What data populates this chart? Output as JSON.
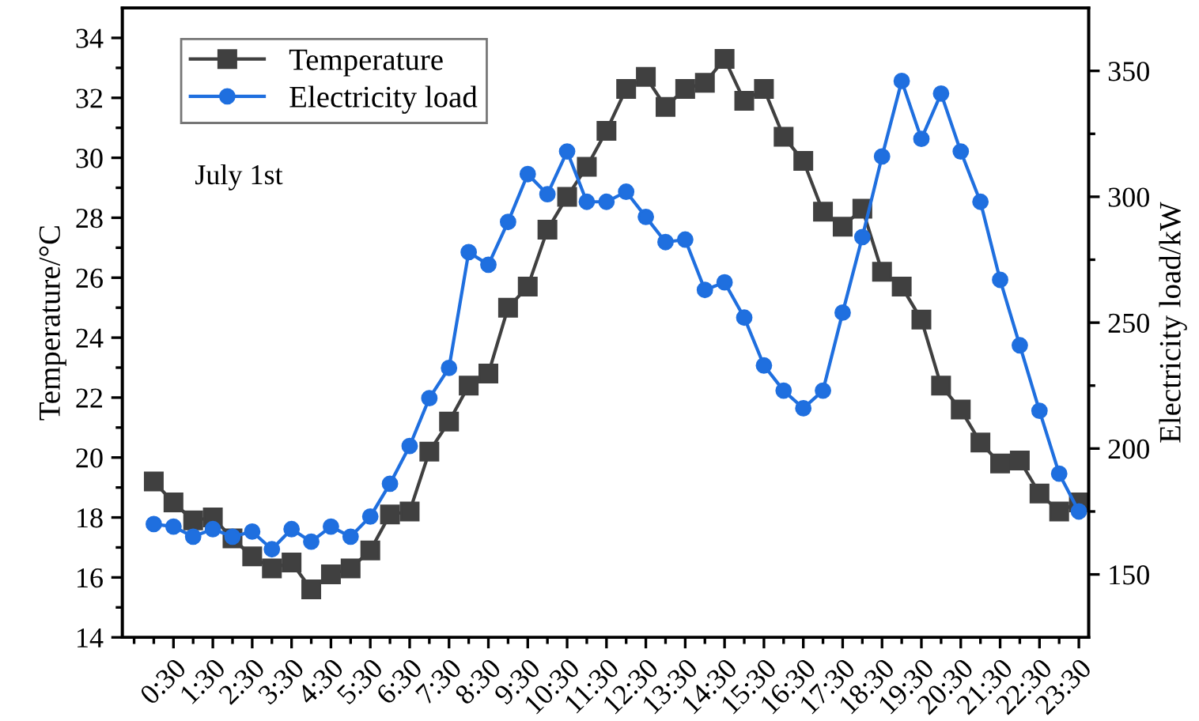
{
  "chart_data": {
    "type": "line",
    "xlabel": null,
    "ylabel": "Temperature/°C",
    "y2label": "Electricity load/kW",
    "annotations": [
      "July 1st"
    ],
    "x": [
      0,
      0.5,
      1,
      1.5,
      2,
      2.5,
      3,
      3.5,
      4,
      4.5,
      5,
      5.5,
      6,
      6.5,
      7,
      7.5,
      8,
      8.5,
      9,
      9.5,
      10,
      10.5,
      11,
      11.5,
      12,
      12.5,
      13,
      13.5,
      14,
      14.5,
      15,
      15.5,
      16,
      16.5,
      17,
      17.5,
      18,
      18.5,
      19,
      19.5,
      20,
      20.5,
      21,
      21.5,
      22,
      22.5,
      23,
      23.5
    ],
    "series": [
      {
        "name": "Temperature",
        "color": "#404040",
        "marker": "square",
        "values": [
          19.2,
          18.5,
          17.9,
          18.0,
          17.3,
          16.7,
          16.3,
          16.5,
          15.6,
          16.1,
          16.3,
          16.9,
          18.1,
          18.2,
          20.2,
          21.2,
          22.4,
          22.8,
          25.0,
          25.7,
          27.6,
          28.7,
          29.7,
          30.9,
          32.3,
          32.7,
          31.7,
          32.3,
          32.5,
          33.3,
          31.9,
          32.3,
          30.7,
          29.9,
          28.2,
          27.7,
          28.3,
          26.2,
          25.7,
          24.6,
          22.4,
          21.6,
          20.5,
          19.8,
          19.9,
          18.8,
          18.2,
          18.5
        ]
      },
      {
        "name": "Electricity load",
        "color": "#1f6fdf",
        "marker": "circle",
        "axis": "y2",
        "values": [
          170,
          169,
          165,
          168,
          165,
          167,
          160,
          168,
          163,
          169,
          165,
          173,
          186,
          201,
          220,
          232,
          278,
          273,
          290,
          309,
          301,
          318,
          298,
          298,
          302,
          292,
          282,
          283,
          263,
          266,
          252,
          233,
          223,
          216,
          223,
          254,
          284,
          316,
          346,
          323,
          341,
          318,
          298,
          267,
          241,
          215,
          190,
          175
        ]
      }
    ],
    "xlim": [
      -0.8,
      23.75
    ],
    "xticks": [
      {
        "value": -0.5,
        "label": null
      },
      {
        "value": 0,
        "label": null
      },
      {
        "value": 0.5,
        "label": "0:30"
      },
      {
        "value": 1,
        "label": null
      },
      {
        "value": 1.5,
        "label": "1:30"
      },
      {
        "value": 2,
        "label": null
      },
      {
        "value": 2.5,
        "label": "2:30"
      },
      {
        "value": 3,
        "label": null
      },
      {
        "value": 3.5,
        "label": "3:30"
      },
      {
        "value": 4,
        "label": null
      },
      {
        "value": 4.5,
        "label": "4:30"
      },
      {
        "value": 5,
        "label": null
      },
      {
        "value": 5.5,
        "label": "5:30"
      },
      {
        "value": 6,
        "label": null
      },
      {
        "value": 6.5,
        "label": "6:30"
      },
      {
        "value": 7,
        "label": null
      },
      {
        "value": 7.5,
        "label": "7:30"
      },
      {
        "value": 8,
        "label": null
      },
      {
        "value": 8.5,
        "label": "8:30"
      },
      {
        "value": 9,
        "label": null
      },
      {
        "value": 9.5,
        "label": "9:30"
      },
      {
        "value": 10,
        "label": null
      },
      {
        "value": 10.5,
        "label": "10:30"
      },
      {
        "value": 11,
        "label": null
      },
      {
        "value": 11.5,
        "label": "11:30"
      },
      {
        "value": 12,
        "label": null
      },
      {
        "value": 12.5,
        "label": "12:30"
      },
      {
        "value": 13,
        "label": null
      },
      {
        "value": 13.5,
        "label": "13:30"
      },
      {
        "value": 14,
        "label": null
      },
      {
        "value": 14.5,
        "label": "14:30"
      },
      {
        "value": 15,
        "label": null
      },
      {
        "value": 15.5,
        "label": "15:30"
      },
      {
        "value": 16,
        "label": null
      },
      {
        "value": 16.5,
        "label": "16:30"
      },
      {
        "value": 17,
        "label": null
      },
      {
        "value": 17.5,
        "label": "17:30"
      },
      {
        "value": 18,
        "label": null
      },
      {
        "value": 18.5,
        "label": "18:30"
      },
      {
        "value": 19,
        "label": null
      },
      {
        "value": 19.5,
        "label": "19:30"
      },
      {
        "value": 20,
        "label": null
      },
      {
        "value": 20.5,
        "label": "20:30"
      },
      {
        "value": 21,
        "label": null
      },
      {
        "value": 21.5,
        "label": "21:30"
      },
      {
        "value": 22,
        "label": null
      },
      {
        "value": 22.5,
        "label": "22:30"
      },
      {
        "value": 23,
        "label": null
      },
      {
        "value": 23.5,
        "label": "23:30"
      }
    ],
    "ylim": [
      14,
      35
    ],
    "yticks": [
      14,
      {
        "value": 15,
        "label": null
      },
      16,
      {
        "value": 17,
        "label": null
      },
      18,
      {
        "value": 19,
        "label": null
      },
      20,
      {
        "value": 21,
        "label": null
      },
      22,
      {
        "value": 23,
        "label": null
      },
      24,
      {
        "value": 25,
        "label": null
      },
      26,
      {
        "value": 27,
        "label": null
      },
      28,
      {
        "value": 29,
        "label": null
      },
      30,
      {
        "value": 31,
        "label": null
      },
      32,
      {
        "value": 33,
        "label": null
      },
      34
    ],
    "y2lim": [
      125,
      375
    ],
    "y2ticks": [
      150,
      {
        "value": 175,
        "label": null
      },
      200,
      {
        "value": 225,
        "label": null
      },
      250,
      {
        "value": 275,
        "label": null
      },
      300,
      {
        "value": 325,
        "label": null
      },
      350
    ],
    "legend": "top left",
    "grid": false,
    "line_style": "solid"
  }
}
